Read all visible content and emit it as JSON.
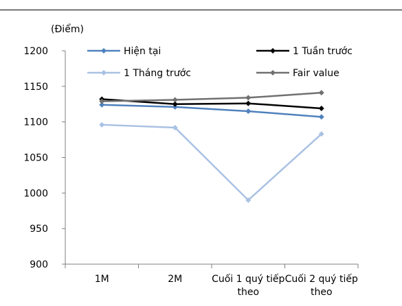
{
  "chart_data": {
    "type": "line",
    "unit_label": "(Điểm)",
    "categories": [
      [
        "1M"
      ],
      [
        "2M"
      ],
      [
        "Cuối 1 quý tiếp",
        "theo"
      ],
      [
        "Cuối 2 quý tiếp",
        "theo"
      ]
    ],
    "ylim": [
      900,
      1200
    ],
    "yticks": [
      900,
      950,
      1000,
      1050,
      1100,
      1150,
      1200
    ],
    "grid": false,
    "legend_placement": "top",
    "series": [
      {
        "name": "Hiện tại",
        "color": "#4F81BD",
        "values": [
          1124,
          1121,
          1115,
          1107
        ]
      },
      {
        "name": "1 Tuần trước",
        "color": "#000000",
        "values": [
          1132,
          1125,
          1126,
          1119
        ]
      },
      {
        "name": "1 Tháng trước",
        "color": "#A9C1E3",
        "values": [
          1096,
          1092,
          990,
          1083
        ]
      },
      {
        "name": "Fair value",
        "color": "#707070",
        "values": [
          1129,
          1131,
          1134,
          1141
        ]
      }
    ]
  }
}
